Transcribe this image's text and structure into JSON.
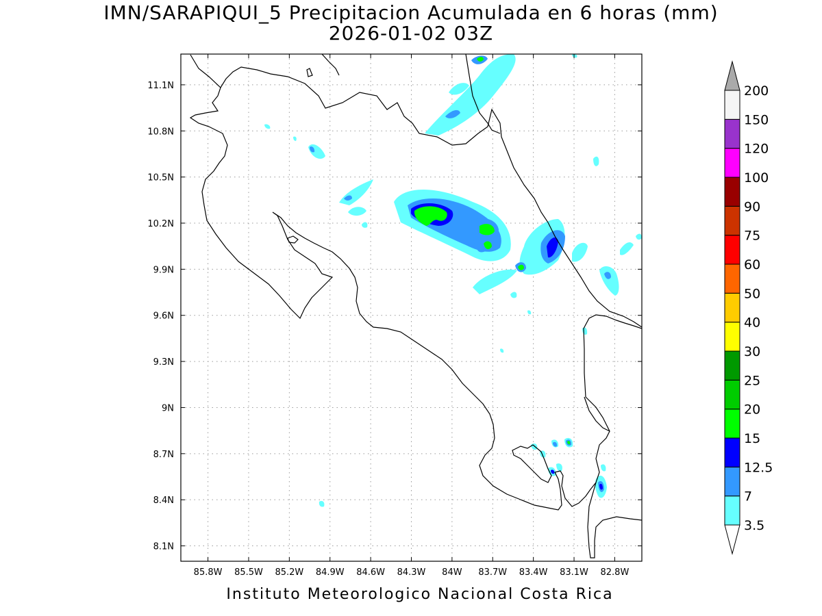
{
  "title_line1": "IMN/SARAPIQUI_5 Precipitacion Acumulada en 6 horas (mm)",
  "title_line2": "2026-01-02 03Z",
  "footer": "Instituto Meteorologico Nacional Costa Rica",
  "map": {
    "lon_range": [
      -86.0,
      -82.6
    ],
    "lat_range": [
      8.0,
      11.3
    ],
    "lon_ticks": [
      {
        "value": -85.8,
        "label": "85.8W"
      },
      {
        "value": -85.5,
        "label": "85.5W"
      },
      {
        "value": -85.2,
        "label": "85.2W"
      },
      {
        "value": -84.9,
        "label": "84.9W"
      },
      {
        "value": -84.6,
        "label": "84.6W"
      },
      {
        "value": -84.3,
        "label": "84.3W"
      },
      {
        "value": -84.0,
        "label": "84W"
      },
      {
        "value": -83.7,
        "label": "83.7W"
      },
      {
        "value": -83.4,
        "label": "83.4W"
      },
      {
        "value": -83.1,
        "label": "83.1W"
      },
      {
        "value": -82.8,
        "label": "82.8W"
      }
    ],
    "lat_ticks": [
      {
        "value": 8.1,
        "label": "8.1N"
      },
      {
        "value": 8.4,
        "label": "8.4N"
      },
      {
        "value": 8.7,
        "label": "8.7N"
      },
      {
        "value": 9.0,
        "label": "9N"
      },
      {
        "value": 9.3,
        "label": "9.3N"
      },
      {
        "value": 9.6,
        "label": "9.6N"
      },
      {
        "value": 9.9,
        "label": "9.9N"
      },
      {
        "value": 10.2,
        "label": "10.2N"
      },
      {
        "value": 10.5,
        "label": "10.5N"
      },
      {
        "value": 10.8,
        "label": "10.8N"
      },
      {
        "value": 11.1,
        "label": "11.1N"
      }
    ],
    "grid": "dotted"
  },
  "colorbar": {
    "units": "mm",
    "levels": [
      {
        "label": "3.5",
        "color": "#66ffff"
      },
      {
        "label": "7",
        "color": "#3399ff"
      },
      {
        "label": "12.5",
        "color": "#0000ff"
      },
      {
        "label": "15",
        "color": "#00ff00"
      },
      {
        "label": "20",
        "color": "#00cc00"
      },
      {
        "label": "25",
        "color": "#009900"
      },
      {
        "label": "30",
        "color": "#ffff00"
      },
      {
        "label": "40",
        "color": "#ffcc00"
      },
      {
        "label": "50",
        "color": "#ff6600"
      },
      {
        "label": "60",
        "color": "#ff0000"
      },
      {
        "label": "75",
        "color": "#cc3300"
      },
      {
        "label": "90",
        "color": "#990000"
      },
      {
        "label": "100",
        "color": "#ff00ff"
      },
      {
        "label": "120",
        "color": "#9933cc"
      },
      {
        "label": "150",
        "color": "#f5f5f5"
      },
      {
        "label": "200",
        "color": "#aaaaaa"
      }
    ]
  }
}
